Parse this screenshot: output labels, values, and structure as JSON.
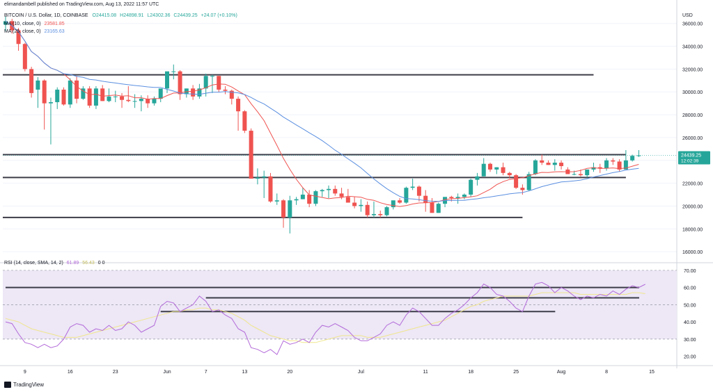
{
  "publisher": "elimandambell published on TradingView.com, Aug 13, 2022 11:57 UTC",
  "footer_brand": "TradingView",
  "price_pane": {
    "symbol": "BITCOIN / U.S. Dollar, 1D, COINBASE",
    "ohlc": {
      "o": "O24415.08",
      "h": "H24898.91",
      "l": "L24302.36",
      "c": "C24439.25",
      "chg": "+24.07 (+0.10%)"
    },
    "ma10_label": "MA (10, close, 0)",
    "ma10_value": "23581.85",
    "ma25_label": "MA (25, close, 0)",
    "ma25_value": "23165.63",
    "currency": "USD",
    "last_price": "24439.25",
    "countdown": "12:02:39"
  },
  "rsi_pane": {
    "label": "RSI (14, close, SMA, 14, 2)",
    "rsi_value": "61.89",
    "sma_value": "56.43",
    "extra": "0  0"
  },
  "colors": {
    "up": "#26a69a",
    "down": "#ef5350",
    "ma10": "#ef5350",
    "ma25": "#5b8fe0",
    "rsi": "#b36ad9",
    "rsi_sma": "#f0e68c",
    "rsi_band": "#ede7f6",
    "hline": "#3c3c48",
    "last_price_bg": "#26a69a"
  },
  "chart_data": {
    "type": "candlestick",
    "title": "BITCOIN / U.S. Dollar, 1D, COINBASE",
    "y_ticks": [
      16000,
      18000,
      20000,
      22000,
      24000,
      26000,
      28000,
      30000,
      32000,
      34000,
      36000
    ],
    "ylim": [
      15400,
      37200
    ],
    "x_ticks": [
      {
        "label": "9",
        "index": 3
      },
      {
        "label": "16",
        "index": 10
      },
      {
        "label": "23",
        "index": 17
      },
      {
        "label": "Jun",
        "index": 25
      },
      {
        "label": "7",
        "index": 31
      },
      {
        "label": "13",
        "index": 37
      },
      {
        "label": "20",
        "index": 44
      },
      {
        "label": "Jul",
        "index": 55
      },
      {
        "label": "11",
        "index": 65
      },
      {
        "label": "18",
        "index": 72
      },
      {
        "label": "25",
        "index": 79
      },
      {
        "label": "Aug",
        "index": 86
      },
      {
        "label": "8",
        "index": 93
      },
      {
        "label": "15",
        "index": 100
      }
    ],
    "ohlc": [
      [
        35900,
        36600,
        35300,
        36200
      ],
      [
        36200,
        36400,
        35100,
        35400
      ],
      [
        35400,
        35600,
        33600,
        34200
      ],
      [
        34200,
        34300,
        31800,
        32000
      ],
      [
        32000,
        32200,
        29500,
        29900
      ],
      [
        30200,
        31300,
        28600,
        31000
      ],
      [
        31000,
        31100,
        26700,
        29000
      ],
      [
        29000,
        29500,
        25400,
        29100
      ],
      [
        29100,
        30400,
        28500,
        30200
      ],
      [
        30200,
        30400,
        28800,
        28900
      ],
      [
        28900,
        31200,
        28600,
        31000
      ],
      [
        31000,
        31400,
        29000,
        29400
      ],
      [
        29400,
        30500,
        29300,
        30300
      ],
      [
        30300,
        30500,
        28600,
        28800
      ],
      [
        28800,
        30500,
        28500,
        30300
      ],
      [
        30300,
        30600,
        29200,
        29200
      ],
      [
        29200,
        30300,
        29100,
        29600
      ],
      [
        29600,
        30100,
        29100,
        29600
      ],
      [
        29600,
        29900,
        28600,
        29300
      ],
      [
        29300,
        30500,
        29100,
        29200
      ],
      [
        29200,
        29800,
        28600,
        29200
      ],
      [
        29200,
        29700,
        28300,
        29400
      ],
      [
        29400,
        29700,
        28600,
        29000
      ],
      [
        29000,
        29600,
        28800,
        29400
      ],
      [
        29400,
        30200,
        29100,
        30300
      ],
      [
        30300,
        31600,
        29900,
        31800
      ],
      [
        31800,
        32400,
        31100,
        31800
      ],
      [
        31800,
        31900,
        29300,
        29800
      ],
      [
        29800,
        30300,
        29500,
        30300
      ],
      [
        30300,
        30600,
        29300,
        29600
      ],
      [
        29600,
        30700,
        29400,
        30300
      ],
      [
        30300,
        31600,
        29600,
        31400
      ],
      [
        31400,
        31500,
        29900,
        31400
      ],
      [
        31400,
        31400,
        30000,
        30200
      ],
      [
        30200,
        30500,
        29800,
        30100
      ],
      [
        30100,
        30200,
        28900,
        29400
      ],
      [
        29400,
        29600,
        26600,
        28300
      ],
      [
        28300,
        28400,
        26400,
        26600
      ],
      [
        26600,
        26800,
        22400,
        22400
      ],
      [
        22400,
        23300,
        21900,
        22500
      ],
      [
        22500,
        23100,
        20700,
        22600
      ],
      [
        22600,
        22900,
        20300,
        20400
      ],
      [
        20400,
        21100,
        20100,
        20500
      ],
      [
        20500,
        20600,
        18100,
        19000
      ],
      [
        19000,
        20900,
        17600,
        20500
      ],
      [
        20500,
        20800,
        20100,
        20600
      ],
      [
        20600,
        21600,
        20600,
        21000
      ],
      [
        21000,
        21400,
        19900,
        20200
      ],
      [
        20200,
        21400,
        20000,
        21300
      ],
      [
        21300,
        21500,
        20800,
        21400
      ],
      [
        21400,
        21800,
        20700,
        21500
      ],
      [
        21500,
        21800,
        20900,
        21100
      ],
      [
        21100,
        21600,
        20600,
        20800
      ],
      [
        20800,
        21500,
        20300,
        20300
      ],
      [
        20300,
        20800,
        19800,
        20000
      ],
      [
        20000,
        20600,
        19500,
        20100
      ],
      [
        20100,
        20400,
        19000,
        19200
      ],
      [
        19200,
        20400,
        19000,
        19300
      ],
      [
        19300,
        19600,
        19000,
        19200
      ],
      [
        19200,
        20000,
        19100,
        19900
      ],
      [
        19900,
        20400,
        19700,
        20500
      ],
      [
        20500,
        20700,
        20200,
        20300
      ],
      [
        20300,
        21700,
        20200,
        21600
      ],
      [
        21600,
        22400,
        21400,
        21700
      ],
      [
        21700,
        21800,
        20400,
        20900
      ],
      [
        20900,
        21400,
        19500,
        20300
      ],
      [
        20300,
        20700,
        19900,
        19400
      ],
      [
        19400,
        20300,
        19400,
        20200
      ],
      [
        20200,
        20700,
        19900,
        20800
      ],
      [
        20800,
        20900,
        20400,
        20700
      ],
      [
        20700,
        21100,
        20200,
        20800
      ],
      [
        20800,
        21100,
        20600,
        21000
      ],
      [
        21000,
        22400,
        20800,
        22300
      ],
      [
        22300,
        22900,
        21800,
        22600
      ],
      [
        22600,
        24200,
        22600,
        23700
      ],
      [
        23700,
        23800,
        23000,
        23200
      ],
      [
        23200,
        23400,
        22800,
        23400
      ],
      [
        23400,
        23800,
        22700,
        22900
      ],
      [
        22900,
        23000,
        22400,
        22700
      ],
      [
        22700,
        22800,
        21500,
        21600
      ],
      [
        21600,
        21900,
        21000,
        21400
      ],
      [
        21400,
        23000,
        21300,
        22800
      ],
      [
        22800,
        24100,
        22700,
        24000
      ],
      [
        24000,
        24500,
        23600,
        23800
      ],
      [
        23800,
        24000,
        23600,
        23600
      ],
      [
        23600,
        24100,
        23100,
        23800
      ],
      [
        23800,
        24000,
        23200
      ],
      [
        23200,
        23400,
        23000,
        22800
      ],
      [
        22800,
        23100,
        22700,
        22800
      ],
      [
        22800,
        23200,
        22600,
        22700
      ],
      [
        22700,
        23200,
        22500,
        23200
      ],
      [
        23200,
        23800,
        23000,
        23400
      ],
      [
        23400,
        23700,
        22900,
        23300
      ],
      [
        23300,
        24200,
        23100,
        24000
      ],
      [
        24000,
        24200,
        23600,
        23900
      ],
      [
        23900,
        24100,
        23000,
        23200
      ],
      [
        23200,
        24900,
        23200,
        24000
      ],
      [
        24000,
        24500,
        23900,
        24400
      ],
      [
        24400,
        24900,
        24300,
        24439
      ]
    ],
    "horizontal_levels": [
      31500,
      24500,
      22500,
      19000
    ],
    "rsi": {
      "y_ticks": [
        20,
        30,
        40,
        50,
        60,
        70
      ],
      "ylim": [
        17,
        72
      ],
      "band": [
        30,
        70
      ],
      "levels": [
        {
          "value": 60,
          "from": 0,
          "to": 100
        },
        {
          "value": 54,
          "from": 31,
          "to": 100
        },
        {
          "value": 46,
          "from": 24,
          "to": 87
        }
      ],
      "rsi_values": [
        40,
        39,
        33,
        28,
        27,
        25,
        27,
        25,
        26,
        30,
        37,
        39,
        38,
        34,
        36,
        35,
        38,
        35,
        36,
        40,
        38,
        34,
        36,
        38,
        49,
        52,
        51,
        46,
        48,
        50,
        55,
        52,
        46,
        47,
        44,
        42,
        36,
        34,
        25,
        24,
        22,
        24,
        21,
        29,
        27,
        28,
        30,
        28,
        34,
        38,
        37,
        39,
        37,
        35,
        31,
        29,
        29,
        31,
        33,
        38,
        40,
        38,
        44,
        48,
        46,
        42,
        38,
        38,
        42,
        45,
        47,
        50,
        54,
        57,
        62,
        60,
        56,
        55,
        52,
        48,
        46,
        55,
        62,
        63,
        61,
        57,
        60,
        58,
        55,
        53,
        55,
        54,
        56,
        55,
        58,
        56,
        59,
        61,
        60,
        61.89
      ],
      "sma_values": [
        42,
        41,
        40,
        38,
        36,
        35,
        34,
        33,
        32,
        31,
        31,
        31,
        32,
        33,
        34,
        35,
        36,
        37,
        38,
        39,
        40,
        41,
        42,
        43,
        44,
        45,
        46,
        46,
        47,
        47,
        48,
        48,
        47,
        47,
        46,
        45,
        43,
        41,
        38,
        36,
        34,
        32,
        31,
        30,
        29,
        29,
        28,
        28,
        28,
        29,
        30,
        31,
        32,
        32,
        32,
        32,
        31,
        31,
        31,
        32,
        33,
        34,
        35,
        36,
        37,
        38,
        39,
        40,
        41,
        43,
        45,
        47,
        49,
        50,
        52,
        53,
        54,
        55,
        55,
        55,
        55,
        55,
        56,
        57,
        57,
        57,
        57,
        57,
        57,
        56,
        56,
        56,
        56,
        56,
        56,
        56,
        56,
        57,
        57,
        56.43
      ]
    }
  }
}
